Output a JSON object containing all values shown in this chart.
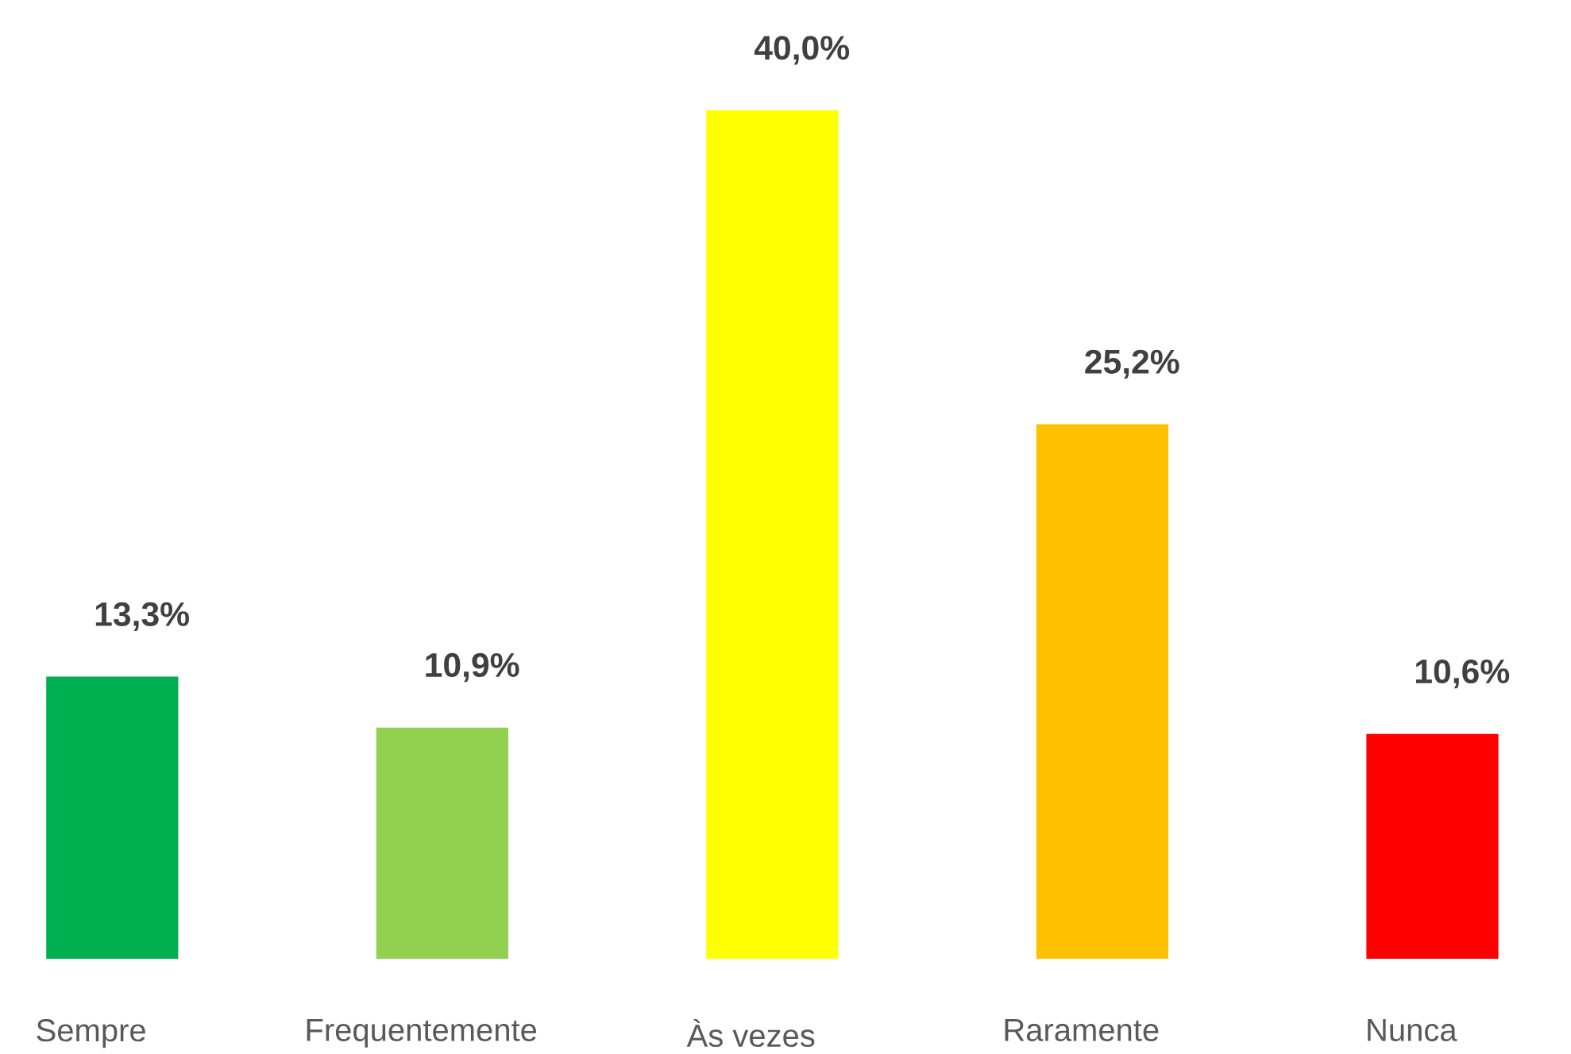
{
  "chart_data": {
    "type": "bar",
    "categories": [
      "Sempre",
      "Frequentemente",
      "Às vezes",
      "Raramente",
      "Nunca"
    ],
    "values": [
      13.3,
      10.9,
      40.0,
      25.2,
      10.6
    ],
    "value_labels": [
      "13,3%",
      "10,9%",
      "40,0%",
      "25,2%",
      "10,6%"
    ],
    "colors": [
      "#00b050",
      "#92d050",
      "#ffff00",
      "#ffc000",
      "#ff0000"
    ]
  }
}
